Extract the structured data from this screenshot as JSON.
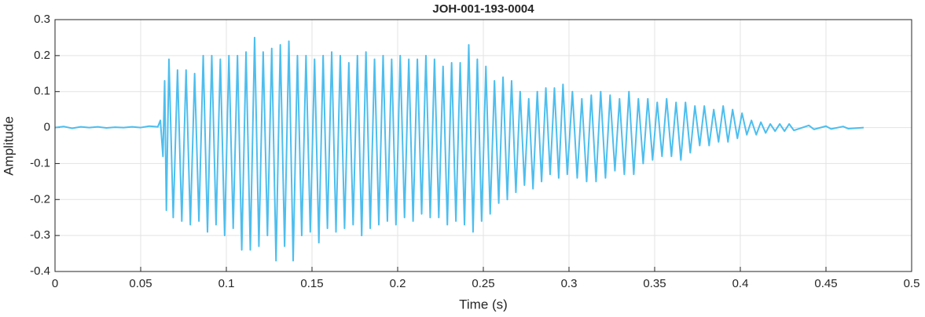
{
  "chart_data": {
    "type": "line",
    "title": "JOH-001-193-0004",
    "x_label": "Time (s)",
    "y_label": "Amplitude",
    "x": [
      0,
      0.005,
      0.01,
      0.015,
      0.02,
      0.025,
      0.03,
      0.035,
      0.04,
      0.045,
      0.05,
      0.055,
      0.06,
      0.0615,
      0.063,
      0.064,
      0.065,
      0.0665,
      0.069,
      0.0715,
      0.074,
      0.0765,
      0.079,
      0.0815,
      0.084,
      0.0865,
      0.089,
      0.0915,
      0.094,
      0.0965,
      0.099,
      0.1015,
      0.104,
      0.1065,
      0.109,
      0.1115,
      0.114,
      0.1165,
      0.119,
      0.1215,
      0.124,
      0.1265,
      0.129,
      0.1315,
      0.134,
      0.1365,
      0.139,
      0.1415,
      0.144,
      0.1465,
      0.149,
      0.1515,
      0.154,
      0.1565,
      0.159,
      0.1615,
      0.164,
      0.1665,
      0.169,
      0.1715,
      0.174,
      0.1765,
      0.179,
      0.1815,
      0.184,
      0.1865,
      0.189,
      0.1915,
      0.194,
      0.1965,
      0.199,
      0.2015,
      0.204,
      0.2065,
      0.209,
      0.2115,
      0.214,
      0.2165,
      0.219,
      0.2215,
      0.224,
      0.2265,
      0.229,
      0.2315,
      0.234,
      0.2365,
      0.239,
      0.2415,
      0.244,
      0.2465,
      0.249,
      0.2515,
      0.254,
      0.2565,
      0.259,
      0.2615,
      0.264,
      0.2665,
      0.269,
      0.2715,
      0.274,
      0.2765,
      0.279,
      0.2815,
      0.284,
      0.2865,
      0.289,
      0.2915,
      0.294,
      0.2965,
      0.299,
      0.302,
      0.3048,
      0.3075,
      0.3103,
      0.313,
      0.3158,
      0.3185,
      0.3213,
      0.324,
      0.3268,
      0.3295,
      0.3323,
      0.335,
      0.3378,
      0.3405,
      0.3433,
      0.346,
      0.3488,
      0.3515,
      0.3543,
      0.357,
      0.3598,
      0.3625,
      0.3653,
      0.368,
      0.3708,
      0.3735,
      0.3763,
      0.379,
      0.3818,
      0.3845,
      0.3873,
      0.39,
      0.3928,
      0.3955,
      0.3983,
      0.401,
      0.4038,
      0.4065,
      0.4093,
      0.412,
      0.4148,
      0.4175,
      0.4203,
      0.423,
      0.4258,
      0.4285,
      0.4313,
      0.44,
      0.443,
      0.45,
      0.453,
      0.46,
      0.463,
      0.472
    ],
    "color": "#4dbeee",
    "values": [
      0,
      0.003,
      -0.002,
      0.002,
      0,
      0.002,
      -0.001,
      0.001,
      0,
      0.002,
      0,
      0.004,
      0.002,
      0.02,
      -0.08,
      0.13,
      -0.23,
      0.19,
      -0.25,
      0.16,
      -0.26,
      0.16,
      -0.27,
      0.15,
      -0.26,
      0.2,
      -0.29,
      0.2,
      -0.27,
      0.19,
      -0.3,
      0.2,
      -0.28,
      0.2,
      -0.34,
      0.21,
      -0.34,
      0.25,
      -0.33,
      0.21,
      -0.3,
      0.22,
      -0.37,
      0.23,
      -0.33,
      0.24,
      -0.37,
      0.2,
      -0.3,
      0.2,
      -0.29,
      0.19,
      -0.32,
      0.2,
      -0.28,
      0.21,
      -0.29,
      0.2,
      -0.28,
      0.18,
      -0.27,
      0.2,
      -0.3,
      0.21,
      -0.28,
      0.19,
      -0.27,
      0.2,
      -0.26,
      0.19,
      -0.27,
      0.2,
      -0.25,
      0.19,
      -0.26,
      0.19,
      -0.24,
      0.2,
      -0.25,
      0.19,
      -0.25,
      0.17,
      -0.27,
      0.18,
      -0.26,
      0.18,
      -0.27,
      0.23,
      -0.29,
      0.19,
      -0.26,
      0.17,
      -0.24,
      0.13,
      -0.21,
      0.14,
      -0.2,
      0.13,
      -0.18,
      0.1,
      -0.16,
      0.08,
      -0.17,
      0.1,
      -0.15,
      0.11,
      -0.13,
      0.11,
      -0.14,
      0.12,
      -0.13,
      0.1,
      -0.14,
      0.08,
      -0.15,
      0.09,
      -0.15,
      0.1,
      -0.14,
      0.09,
      -0.12,
      0.08,
      -0.13,
      0.1,
      -0.13,
      0.08,
      -0.1,
      0.08,
      -0.09,
      0.07,
      -0.08,
      0.08,
      -0.08,
      0.07,
      -0.09,
      0.07,
      -0.07,
      0.06,
      -0.05,
      0.06,
      -0.05,
      0.05,
      -0.04,
      0.06,
      -0.04,
      0.05,
      -0.03,
      0.04,
      -0.02,
      0.02,
      -0.02,
      0.015,
      -0.015,
      0.01,
      -0.01,
      0.01,
      -0.01,
      0.01,
      -0.008,
      0.006,
      -0.005,
      0.004,
      -0.004,
      0.003,
      -0.003,
      0
    ],
    "xlim": [
      0,
      0.5
    ],
    "xticks": [
      0,
      0.05,
      0.1,
      0.15,
      0.2,
      0.25,
      0.3,
      0.35,
      0.4,
      0.45,
      0.5
    ],
    "ylim": [
      -0.4,
      0.3
    ],
    "yticks": [
      -0.4,
      -0.3,
      -0.2,
      -0.1,
      0,
      0.1,
      0.2,
      0.3
    ],
    "grid": true
  }
}
